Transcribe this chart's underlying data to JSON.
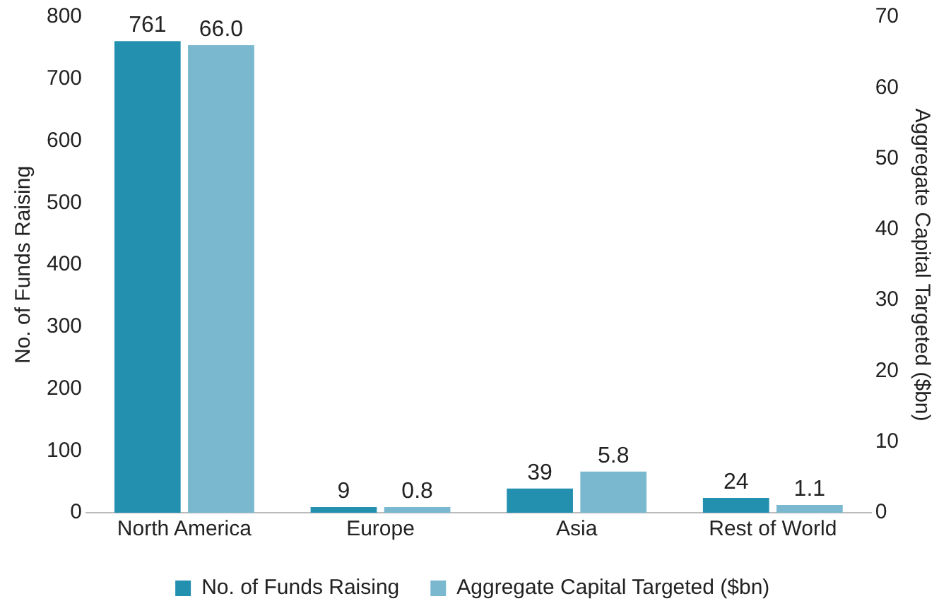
{
  "chart_data": {
    "type": "bar",
    "ylabel": "No. of Funds Raising",
    "y2label": "Aggregate Capital Targeted ($bn)",
    "categories": [
      "North America",
      "Europe",
      "Asia",
      "Rest of World"
    ],
    "series": [
      {
        "name": "No. of Funds Raising",
        "color": "#2490b0",
        "values": [
          761,
          9,
          39,
          24
        ],
        "value_labels": [
          "761",
          "9",
          "39",
          "24"
        ]
      },
      {
        "name": "Aggregate Capital Targeted ($bn)",
        "color": "#7ab8d0",
        "axis": "y2",
        "values": [
          66.0,
          0.8,
          5.8,
          1.1
        ],
        "value_labels": [
          "66.0",
          "0.8",
          "5.8",
          "1.1"
        ]
      }
    ],
    "ylim": [
      0,
      800
    ],
    "yticks": [
      0,
      100,
      200,
      300,
      400,
      500,
      600,
      700,
      800
    ],
    "y2lim": [
      0,
      70
    ],
    "y2ticks": [
      0,
      10,
      20,
      30,
      40,
      50,
      60,
      70
    ],
    "grid": false,
    "legend": "bottom"
  }
}
